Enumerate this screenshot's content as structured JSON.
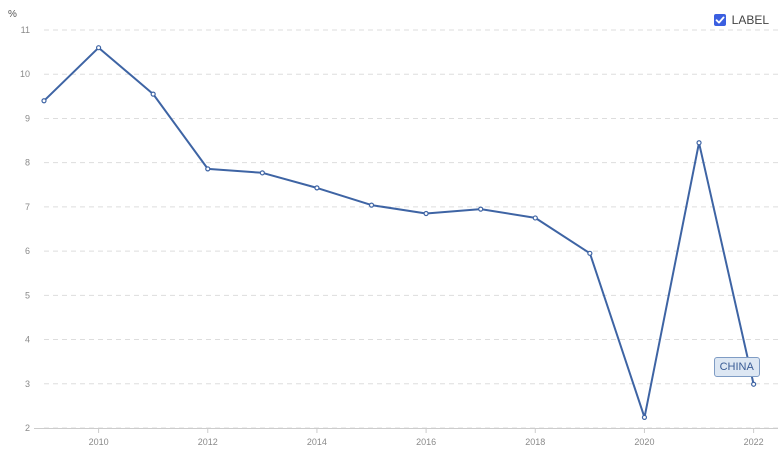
{
  "chart_data": {
    "type": "line",
    "ylabel": "%",
    "ylim": [
      2,
      11
    ],
    "yticks": [
      2,
      3,
      4,
      5,
      6,
      7,
      8,
      9,
      10,
      11
    ],
    "xlim": [
      2009,
      2022.3
    ],
    "xticks": [
      2010,
      2012,
      2014,
      2016,
      2018,
      2020,
      2022
    ],
    "x": [
      2009,
      2010,
      2011,
      2012,
      2013,
      2014,
      2015,
      2016,
      2017,
      2018,
      2019,
      2020,
      2021,
      2022
    ],
    "series": [
      {
        "name": "CHINA",
        "color": "#3e64a4",
        "values": [
          9.4,
          10.6,
          9.55,
          7.86,
          7.77,
          7.43,
          7.04,
          6.85,
          6.95,
          6.75,
          5.95,
          2.24,
          8.45,
          2.99
        ]
      }
    ],
    "grid": "horizontal-dashed",
    "legend": {
      "label": "LABEL",
      "checked": true,
      "position": "top-right",
      "color": "#3b5fe0"
    }
  }
}
